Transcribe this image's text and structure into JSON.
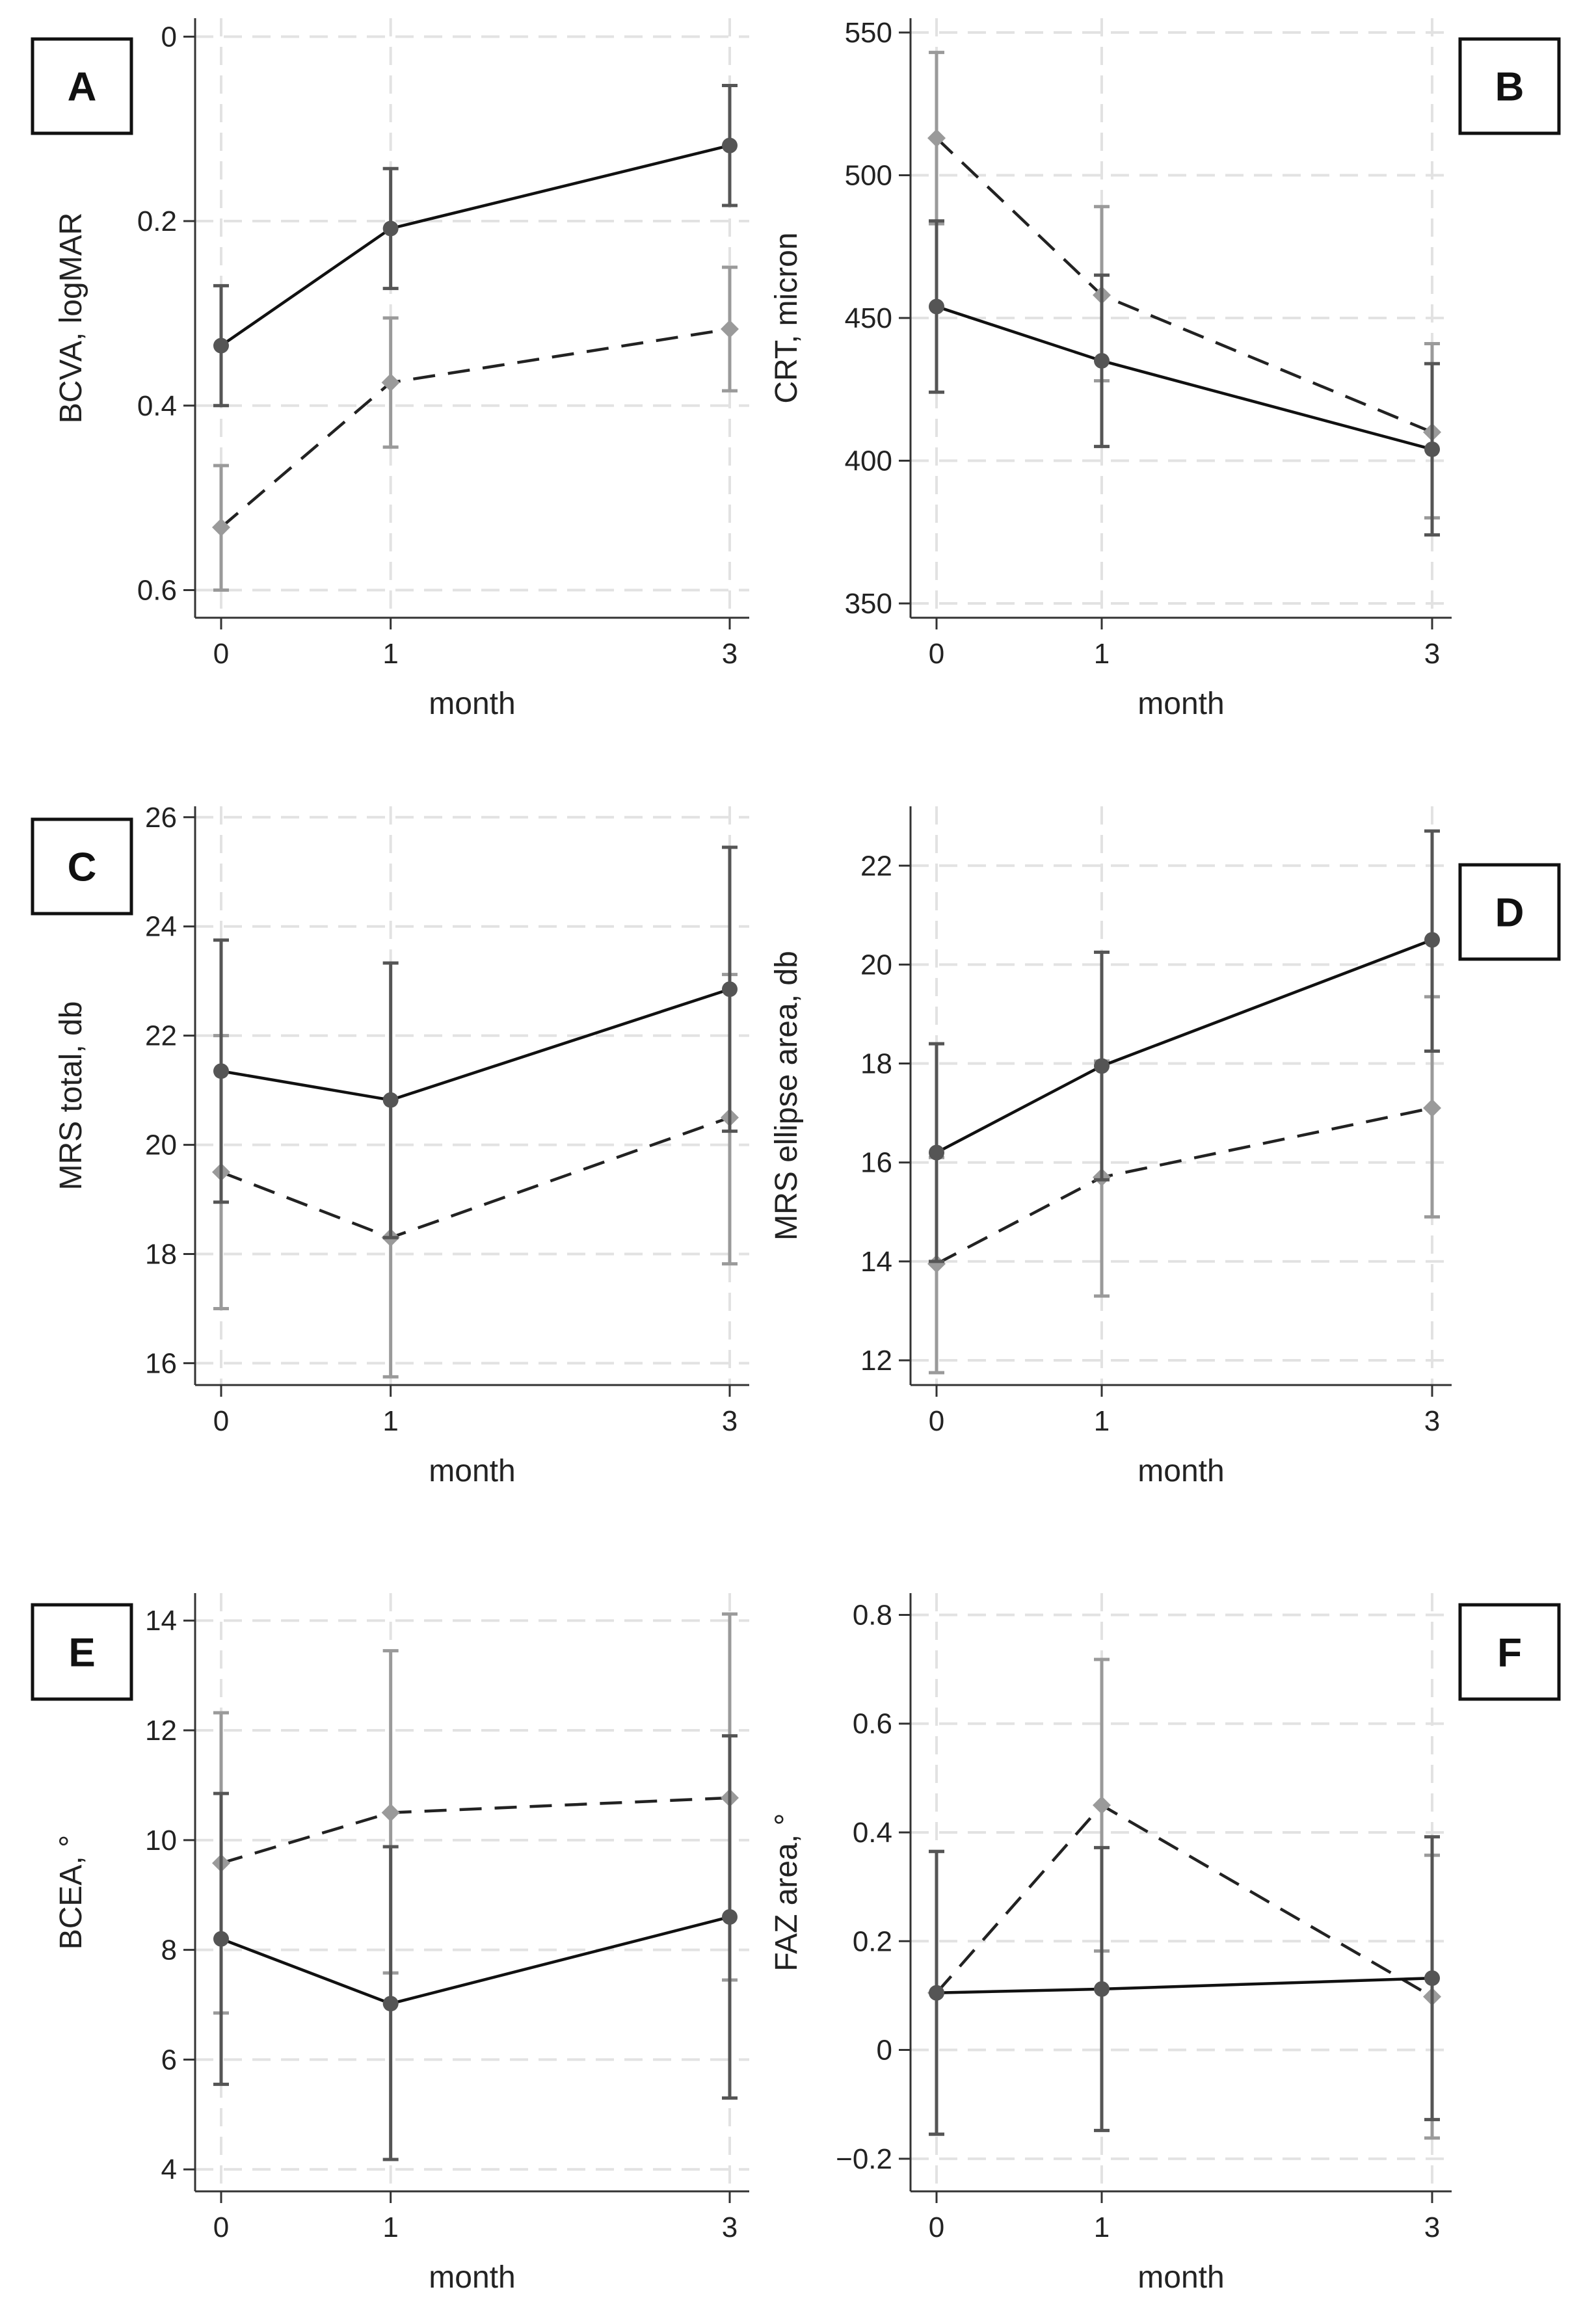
{
  "figure": {
    "colors": {
      "series_solid": "#555555",
      "series_dashed": "#9a9a9a",
      "grid": "#e2e2e2",
      "axis": "#333333"
    },
    "legend": []
  },
  "chart_data": [
    {
      "panel": "A",
      "type": "line",
      "ylabel": "BCVA, logMAR",
      "xlabel": "month",
      "x": [
        0,
        1,
        3
      ],
      "xticks": [
        "0",
        "1",
        "3"
      ],
      "ylim": [
        0.63,
        -0.02
      ],
      "y_inverted": true,
      "yticks": [
        0,
        0.2,
        0.4,
        0.6
      ],
      "ytick_labels": [
        "0",
        "0.2",
        "0.4",
        "0.6"
      ],
      "series": [
        {
          "name": "solid",
          "style": "solid",
          "marker": "circle",
          "values": [
            0.335,
            0.208,
            0.118
          ],
          "lower": [
            0.27,
            0.143,
            0.053
          ],
          "upper": [
            0.4,
            0.273,
            0.183
          ]
        },
        {
          "name": "dashed",
          "style": "dashed",
          "marker": "diamond",
          "values": [
            0.532,
            0.375,
            0.317
          ],
          "lower": [
            0.465,
            0.305,
            0.25
          ],
          "upper": [
            0.6,
            0.445,
            0.384
          ]
        }
      ]
    },
    {
      "panel": "B",
      "type": "line",
      "ylabel": "CRT, micron",
      "xlabel": "month",
      "x": [
        0,
        1,
        3
      ],
      "xticks": [
        "0",
        "1",
        "3"
      ],
      "ylim": [
        345,
        555
      ],
      "yticks": [
        350,
        400,
        450,
        500,
        550
      ],
      "ytick_labels": [
        "350",
        "400",
        "450",
        "500",
        "550"
      ],
      "series": [
        {
          "name": "solid",
          "style": "solid",
          "marker": "circle",
          "values": [
            454,
            435,
            404
          ],
          "lower": [
            424,
            405,
            374
          ],
          "upper": [
            484,
            465,
            434
          ]
        },
        {
          "name": "dashed",
          "style": "dashed",
          "marker": "diamond",
          "values": [
            513,
            458,
            410
          ],
          "lower": [
            483,
            428,
            380
          ],
          "upper": [
            543,
            489,
            441
          ]
        }
      ]
    },
    {
      "panel": "C",
      "type": "line",
      "ylabel": "MRS total, db",
      "xlabel": "month",
      "x": [
        0,
        1,
        3
      ],
      "xticks": [
        "0",
        "1",
        "3"
      ],
      "ylim": [
        15.6,
        26.2
      ],
      "yticks": [
        16,
        18,
        20,
        22,
        24,
        26
      ],
      "ytick_labels": [
        "16",
        "18",
        "20",
        "22",
        "24",
        "26"
      ],
      "series": [
        {
          "name": "solid",
          "style": "solid",
          "marker": "circle",
          "values": [
            21.35,
            20.82,
            22.85
          ],
          "lower": [
            18.95,
            18.3,
            20.25
          ],
          "upper": [
            23.75,
            23.33,
            25.45
          ]
        },
        {
          "name": "dashed",
          "style": "dashed",
          "marker": "diamond",
          "values": [
            19.5,
            18.3,
            20.5
          ],
          "lower": [
            17.0,
            15.75,
            17.82
          ],
          "upper": [
            22.0,
            20.85,
            23.12
          ]
        }
      ]
    },
    {
      "panel": "D",
      "type": "line",
      "ylabel": "MRS ellipse area, db",
      "xlabel": "month",
      "x": [
        0,
        1,
        3
      ],
      "xticks": [
        "0",
        "1",
        "3"
      ],
      "ylim": [
        11.5,
        23.2
      ],
      "yticks": [
        12,
        14,
        16,
        18,
        20,
        22
      ],
      "ytick_labels": [
        "12",
        "14",
        "16",
        "18",
        "20",
        "22"
      ],
      "series": [
        {
          "name": "solid",
          "style": "solid",
          "marker": "circle",
          "values": [
            16.2,
            17.95,
            20.5
          ],
          "lower": [
            14.0,
            15.65,
            18.25
          ],
          "upper": [
            18.4,
            20.25,
            22.7
          ]
        },
        {
          "name": "dashed",
          "style": "dashed",
          "marker": "diamond",
          "values": [
            13.95,
            15.7,
            17.1
          ],
          "lower": [
            11.75,
            13.3,
            14.9
          ],
          "upper": [
            16.1,
            18.05,
            19.35
          ]
        }
      ]
    },
    {
      "panel": "E",
      "type": "line",
      "ylabel": "BCEA, °",
      "xlabel": "month",
      "x": [
        0,
        1,
        3
      ],
      "xticks": [
        "0",
        "1",
        "3"
      ],
      "ylim": [
        3.6,
        14.5
      ],
      "yticks": [
        4,
        6,
        8,
        10,
        12,
        14
      ],
      "ytick_labels": [
        "4",
        "6",
        "8",
        "10",
        "12",
        "14"
      ],
      "series": [
        {
          "name": "solid",
          "style": "solid",
          "marker": "circle",
          "values": [
            8.2,
            7.02,
            8.6
          ],
          "lower": [
            5.55,
            4.18,
            5.3
          ],
          "upper": [
            10.85,
            9.88,
            11.9
          ]
        },
        {
          "name": "dashed",
          "style": "dashed",
          "marker": "diamond",
          "values": [
            9.58,
            10.5,
            10.77
          ],
          "lower": [
            6.85,
            7.58,
            7.45
          ],
          "upper": [
            12.32,
            13.45,
            14.12
          ]
        }
      ]
    },
    {
      "panel": "F",
      "type": "line",
      "ylabel": "FAZ area, °",
      "xlabel": "month",
      "x": [
        0,
        1,
        3
      ],
      "xticks": [
        "0",
        "1",
        "3"
      ],
      "ylim": [
        -0.26,
        0.84
      ],
      "yticks": [
        -0.2,
        0,
        0.2,
        0.4,
        0.6,
        0.8
      ],
      "ytick_labels": [
        "−0.2",
        "0",
        "0.2",
        "0.4",
        "0.6",
        "0.8"
      ],
      "series": [
        {
          "name": "solid",
          "style": "solid",
          "marker": "circle",
          "values": [
            0.105,
            0.112,
            0.132
          ],
          "lower": [
            -0.155,
            -0.148,
            -0.128
          ],
          "upper": [
            0.365,
            0.372,
            0.392
          ]
        },
        {
          "name": "dashed",
          "style": "dashed",
          "marker": "diamond",
          "values": [
            0.105,
            0.45,
            0.098
          ],
          "lower": [
            -0.155,
            0.182,
            -0.162
          ],
          "upper": [
            0.365,
            0.718,
            0.358
          ]
        }
      ]
    }
  ]
}
